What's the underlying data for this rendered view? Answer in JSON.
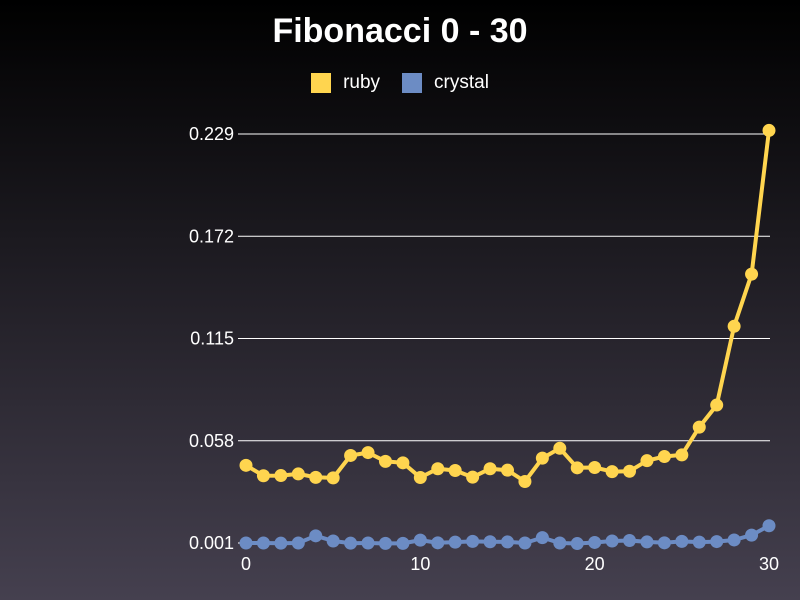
{
  "chart_data": {
    "type": "line",
    "title": "Fibonacci 0 - 30",
    "xlabel": "",
    "ylabel": "",
    "x": [
      0,
      1,
      2,
      3,
      4,
      5,
      6,
      7,
      8,
      9,
      10,
      11,
      12,
      13,
      14,
      15,
      16,
      17,
      18,
      19,
      20,
      21,
      22,
      23,
      24,
      25,
      26,
      27,
      28,
      29,
      30
    ],
    "xticks": [
      "0",
      "10",
      "20",
      "30"
    ],
    "xtick_values": [
      0,
      10,
      20,
      30
    ],
    "xlim": [
      0,
      30
    ],
    "yticks": [
      "0.001",
      "0.058",
      "0.115",
      "0.172",
      "0.229"
    ],
    "ytick_values": [
      0.001,
      0.058,
      0.115,
      0.172,
      0.229
    ],
    "ylim": [
      0.001,
      0.229
    ],
    "grid": "horizontal",
    "legend_position": "top-center",
    "series": [
      {
        "name": "ruby",
        "color": "#ffd54f",
        "values": [
          0.0443,
          0.0385,
          0.0386,
          0.0395,
          0.0376,
          0.0373,
          0.0498,
          0.0514,
          0.0465,
          0.0457,
          0.0375,
          0.0424,
          0.0414,
          0.0377,
          0.0424,
          0.0416,
          0.0353,
          0.0483,
          0.0538,
          0.0429,
          0.0431,
          0.0408,
          0.041,
          0.0469,
          0.0492,
          0.0501,
          0.0656,
          0.0779,
          0.1218,
          0.1509,
          0.231
        ]
      },
      {
        "name": "crystal",
        "color": "#6c8cc4",
        "values": [
          0.001,
          0.001,
          0.0009,
          0.001,
          0.005,
          0.0021,
          0.0009,
          0.001,
          0.0008,
          0.0008,
          0.0026,
          0.0011,
          0.0015,
          0.0019,
          0.0017,
          0.0016,
          0.001,
          0.004,
          0.001,
          0.0007,
          0.0013,
          0.0021,
          0.0024,
          0.0016,
          0.0011,
          0.0019,
          0.0015,
          0.0018,
          0.0027,
          0.0054,
          0.0106
        ]
      }
    ]
  }
}
